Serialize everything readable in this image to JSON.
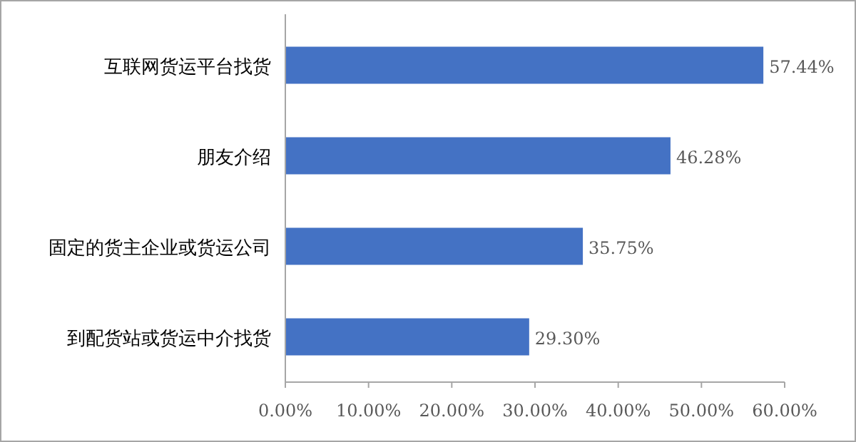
{
  "chart_data": {
    "type": "bar",
    "orientation": "horizontal",
    "categories": [
      "互联网货运平台找货",
      "朋友介绍",
      "固定的货主企业或货运公司",
      "到配货站或货运中介找货"
    ],
    "values": [
      57.44,
      46.28,
      35.75,
      29.3
    ],
    "value_labels": [
      "57.44%",
      "46.28%",
      "35.75%",
      "29.30%"
    ],
    "color": "#4472c4",
    "xlim": [
      0,
      60
    ],
    "xticks": [
      {
        "value": 0,
        "label": "0.00%"
      },
      {
        "value": 10,
        "label": "10.00%"
      },
      {
        "value": 20,
        "label": "20.00%"
      },
      {
        "value": 30,
        "label": "30.00%"
      },
      {
        "value": 40,
        "label": "40.00%"
      },
      {
        "value": 50,
        "label": "50.00%"
      },
      {
        "value": 60,
        "label": "60.00%"
      }
    ]
  }
}
